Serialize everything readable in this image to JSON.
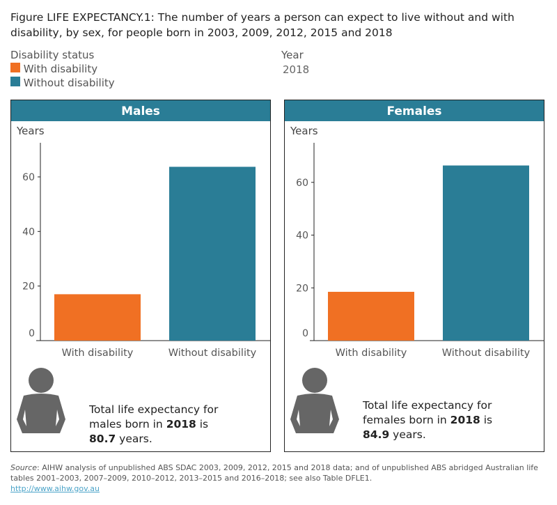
{
  "title": "Figure LIFE EXPECTANCY.1: The number of years a person can expect to live without and with disability, by sex, for people born in 2003, 2009, 2012, 2015 and 2018",
  "legend": {
    "title": "Disability status",
    "items": [
      {
        "label": "With disability",
        "color": "#f07023"
      },
      {
        "label": "Without disability",
        "color": "#2a7d96"
      }
    ]
  },
  "year_filter": {
    "label": "Year",
    "value": "2018"
  },
  "chart_data": [
    {
      "type": "bar",
      "title": "Males",
      "ylabel": "Years",
      "categories": [
        "With disability",
        "Without disability"
      ],
      "values": [
        17.0,
        63.7
      ],
      "colors": [
        "#f07023",
        "#2a7d96"
      ],
      "yticks": [
        0,
        20,
        40,
        60
      ],
      "ylim": [
        0,
        72.5
      ],
      "grid": false
    },
    {
      "type": "bar",
      "title": "Females",
      "ylabel": "Years",
      "categories": [
        "With disability",
        "Without disability"
      ],
      "values": [
        18.5,
        66.4
      ],
      "colors": [
        "#f07023",
        "#2a7d96"
      ],
      "yticks": [
        0,
        20,
        40,
        60
      ],
      "ylim": [
        0,
        75
      ],
      "grid": false
    }
  ],
  "notes": [
    {
      "pre": "Total life expectancy for males born in ",
      "year": "2018",
      "mid": " is ",
      "value": "80.7",
      "post": " years."
    },
    {
      "pre": "Total life expectancy for females born in ",
      "year": "2018",
      "mid": " is ",
      "value": "84.9",
      "post": " years."
    }
  ],
  "source": {
    "label": "Source",
    "text": ": AIHW analysis of unpublished ABS SDAC 2003, 2009, 2012, 2015 and 2018 data; and of unpublished ABS abridged Australian life tables 2001–2003, 2007–2009, 2010–2012, 2013–2015 and 2016–2018; see also Table DFLE1.",
    "link": "http://www.aihw.gov.au"
  }
}
